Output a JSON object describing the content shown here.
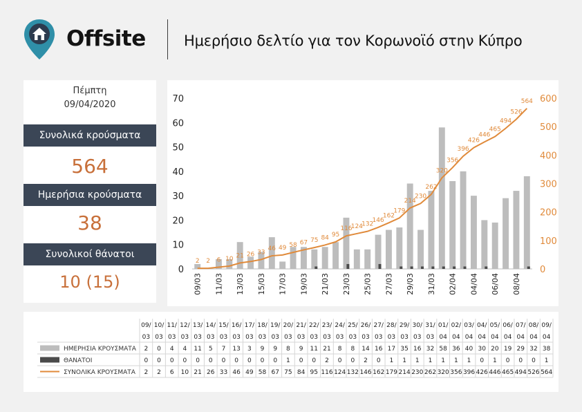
{
  "header": {
    "brand": "Offsite",
    "title": "Ημερήσιο δελτίο για τον Κορωνοϊό στην Κύπρο"
  },
  "stats": {
    "weekday": "Πέμπτη",
    "date": "09/04/2020",
    "total_cases_label": "Συνολικά κρούσματα",
    "total_cases_value": "564",
    "daily_cases_label": "Ημερήσια κρούσματα",
    "daily_cases_value": "38",
    "total_deaths_label": "Συνολικοί θάνατοι",
    "total_deaths_value": "10 (15)"
  },
  "colors": {
    "bars": "#bdbdbd",
    "deaths": "#4a4a4a",
    "line": "#e08a3a",
    "stat_bg": "#3b4656",
    "value": "#c8703a"
  },
  "chart_data": {
    "type": "bar",
    "categories": [
      "09/03",
      "10/03",
      "11/03",
      "12/03",
      "13/03",
      "14/03",
      "15/03",
      "16/03",
      "17/03",
      "18/03",
      "19/03",
      "20/03",
      "21/03",
      "22/03",
      "23/03",
      "24/03",
      "25/03",
      "26/03",
      "27/03",
      "28/03",
      "29/03",
      "30/03",
      "31/03",
      "01/04",
      "02/04",
      "03/04",
      "04/04",
      "05/04",
      "06/04",
      "07/04",
      "08/04",
      "09/04"
    ],
    "x_tick_labels": [
      "09/03",
      "11/03",
      "13/03",
      "15/03",
      "17/03",
      "19/03",
      "21/03",
      "23/03",
      "25/03",
      "27/03",
      "29/03",
      "31/03",
      "02/04",
      "04/04",
      "06/04",
      "08/04"
    ],
    "series": [
      {
        "name": "ΗΜΕΡΗΣΙΑ ΚΡΟΥΣΜΑΤΑ",
        "type": "bar",
        "axis": "left",
        "values": [
          2,
          0,
          4,
          4,
          11,
          5,
          7,
          13,
          3,
          9,
          9,
          8,
          9,
          11,
          21,
          8,
          8,
          14,
          16,
          17,
          35,
          16,
          32,
          58,
          36,
          40,
          30,
          20,
          19,
          29,
          32,
          38
        ]
      },
      {
        "name": "ΘΑΝΑΤΟΙ",
        "type": "bar",
        "axis": "left",
        "values": [
          0,
          0,
          0,
          0,
          0,
          0,
          0,
          0,
          0,
          0,
          0,
          1,
          0,
          0,
          2,
          0,
          0,
          2,
          0,
          1,
          1,
          1,
          1,
          1,
          1,
          1,
          0,
          1,
          0,
          0,
          0,
          1
        ]
      },
      {
        "name": "ΣΥΝΟΛΙΚΑ ΚΡΟΥΣΜΑΤΑ",
        "type": "line",
        "axis": "right",
        "values": [
          2,
          2,
          6,
          10,
          21,
          26,
          33,
          46,
          49,
          58,
          67,
          75,
          84,
          95,
          116,
          124,
          132,
          146,
          162,
          179,
          214,
          230,
          262,
          320,
          356,
          396,
          426,
          446,
          465,
          494,
          526,
          564
        ]
      }
    ],
    "y_left": {
      "ylim": [
        0,
        70
      ],
      "ticks": [
        0,
        10,
        20,
        30,
        40,
        50,
        60,
        70
      ]
    },
    "y_right": {
      "ylim": [
        0,
        600
      ],
      "ticks": [
        0,
        100,
        200,
        300,
        400,
        500,
        600
      ]
    },
    "grid": false,
    "legend": "bottom-table"
  },
  "table": {
    "day_row": [
      "09/",
      "10/",
      "11/",
      "12/",
      "13/",
      "14/",
      "15/",
      "16/",
      "17/",
      "18/",
      "19/",
      "20/",
      "21/",
      "22/",
      "23/",
      "24/",
      "25/",
      "26/",
      "27/",
      "28/",
      "29/",
      "30/",
      "31/",
      "01/",
      "02/",
      "03/",
      "04/",
      "05/",
      "06/",
      "07/",
      "08/",
      "09/"
    ],
    "month_row": [
      "03",
      "03",
      "03",
      "03",
      "03",
      "03",
      "03",
      "03",
      "03",
      "03",
      "03",
      "03",
      "03",
      "03",
      "03",
      "03",
      "03",
      "03",
      "03",
      "03",
      "03",
      "03",
      "03",
      "04",
      "04",
      "04",
      "04",
      "04",
      "04",
      "04",
      "04",
      "04"
    ]
  }
}
